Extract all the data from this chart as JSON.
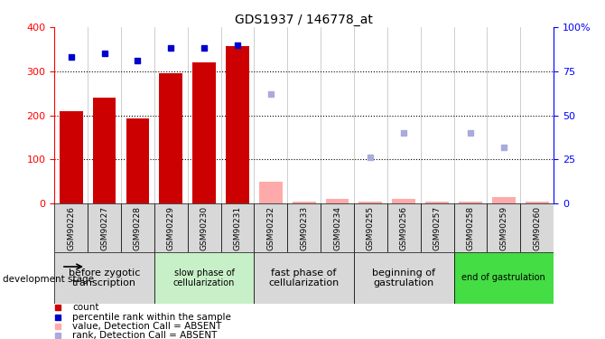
{
  "title": "GDS1937 / 146778_at",
  "samples": [
    "GSM90226",
    "GSM90227",
    "GSM90228",
    "GSM90229",
    "GSM90230",
    "GSM90231",
    "GSM90232",
    "GSM90233",
    "GSM90234",
    "GSM90255",
    "GSM90256",
    "GSM90257",
    "GSM90258",
    "GSM90259",
    "GSM90260"
  ],
  "bar_values": [
    210,
    240,
    192,
    296,
    320,
    356,
    null,
    null,
    null,
    null,
    null,
    null,
    null,
    null,
    null
  ],
  "absent_bar_values": [
    null,
    null,
    null,
    null,
    null,
    null,
    50,
    5,
    10,
    5,
    10,
    5,
    5,
    15,
    5
  ],
  "rank_present": [
    83,
    85,
    81,
    88,
    88,
    90,
    null,
    null,
    null,
    null,
    null,
    null,
    null,
    null,
    null
  ],
  "rank_absent": [
    null,
    null,
    null,
    null,
    null,
    null,
    62,
    null,
    null,
    26,
    40,
    null,
    40,
    32,
    null
  ],
  "ylim_left": [
    0,
    400
  ],
  "ylim_right": [
    0,
    100
  ],
  "bar_color_present": "#cc0000",
  "bar_color_absent": "#ffaaaa",
  "rank_color_present": "#0000cc",
  "rank_color_absent": "#aaaadd",
  "stages_info": [
    {
      "label": "before zygotic\ntranscription",
      "start": 0,
      "end": 3,
      "color": "#d8d8d8",
      "fontsize": 8
    },
    {
      "label": "slow phase of\ncellularization",
      "start": 3,
      "end": 6,
      "color": "#c8f0c8",
      "fontsize": 7
    },
    {
      "label": "fast phase of\ncellularization",
      "start": 6,
      "end": 9,
      "color": "#d8d8d8",
      "fontsize": 8
    },
    {
      "label": "beginning of\ngastrulation",
      "start": 9,
      "end": 12,
      "color": "#d8d8d8",
      "fontsize": 8
    },
    {
      "label": "end of gastrulation",
      "start": 12,
      "end": 15,
      "color": "#44dd44",
      "fontsize": 7
    }
  ],
  "legend_items": [
    {
      "label": "count",
      "color": "#cc0000"
    },
    {
      "label": "percentile rank within the sample",
      "color": "#0000cc"
    },
    {
      "label": "value, Detection Call = ABSENT",
      "color": "#ffaaaa"
    },
    {
      "label": "rank, Detection Call = ABSENT",
      "color": "#aaaadd"
    }
  ],
  "sample_box_color": "#d8d8d8",
  "yticks_left": [
    0,
    100,
    200,
    300,
    400
  ],
  "yticks_right": [
    0,
    25,
    50,
    75,
    100
  ],
  "ytick_labels_right": [
    "0",
    "25",
    "50",
    "75",
    "100%"
  ]
}
